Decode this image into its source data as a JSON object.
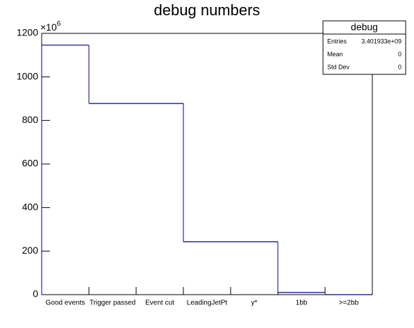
{
  "chart_data": {
    "type": "histogram",
    "title": "debug numbers",
    "y_multiplier": "×10",
    "y_multiplier_exponent": "6",
    "categories": [
      "Good events",
      "Trigger passed",
      "Event cut",
      "LeadingJetPt",
      "y*",
      "1bb",
      ">=2bb"
    ],
    "values": [
      1146,
      878,
      878,
      243,
      243,
      10,
      0
    ],
    "color": "#000080",
    "ylim": [
      0,
      1200
    ],
    "yticks": [
      0,
      200,
      400,
      600,
      800,
      1000,
      1200
    ],
    "stats": {
      "title": "debug",
      "rows": [
        [
          "Entries",
          "3.401933e+09"
        ],
        [
          "Mean",
          "0"
        ],
        [
          "Std Dev",
          "0"
        ]
      ]
    }
  }
}
